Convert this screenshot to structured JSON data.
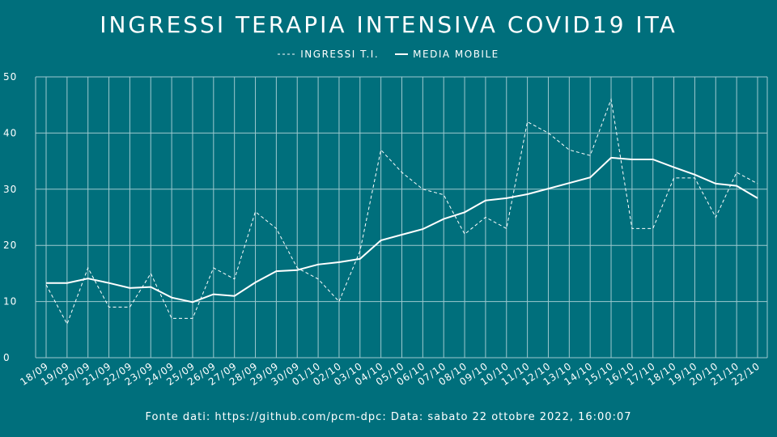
{
  "title": "INGRESSI TERAPIA INTENSIVA COVID19 ITA",
  "legend": {
    "series1": "INGRESSI T.I.",
    "series2": "MEDIA MOBILE"
  },
  "source_text": "Fonte dati: https://github.com/pcm-dpc: Data: sabato 22 ottobre 2022, 16:00:07",
  "colors": {
    "background": "#006f7c",
    "grid": "#9ec9cf",
    "line": "#ffffff"
  },
  "chart_data": {
    "type": "line",
    "categories": [
      "18/09",
      "19/09",
      "20/09",
      "21/09",
      "22/09",
      "23/09",
      "24/09",
      "25/09",
      "26/09",
      "27/09",
      "28/09",
      "29/09",
      "30/09",
      "01/10",
      "02/10",
      "03/10",
      "04/10",
      "05/10",
      "06/10",
      "07/10",
      "08/10",
      "09/10",
      "10/10",
      "11/10",
      "12/10",
      "13/10",
      "14/10",
      "15/10",
      "16/10",
      "17/10",
      "18/10",
      "19/10",
      "20/10",
      "21/10",
      "22/10"
    ],
    "series": [
      {
        "name": "INGRESSI T.I.",
        "style": "dashed",
        "values": [
          13,
          6,
          16,
          9,
          9,
          15,
          7,
          7,
          16,
          14,
          26,
          23,
          16,
          14,
          10,
          19,
          37,
          33,
          30,
          29,
          22,
          25,
          23,
          42,
          40,
          37,
          36,
          46,
          23,
          23,
          32,
          32,
          25,
          33,
          31
        ]
      },
      {
        "name": "MEDIA MOBILE",
        "style": "solid",
        "values": [
          13.3,
          13.3,
          14.1,
          13.3,
          12.4,
          12.6,
          10.7,
          9.9,
          11.3,
          11.0,
          13.4,
          15.4,
          15.6,
          16.6,
          17.0,
          17.6,
          20.9,
          21.9,
          22.9,
          24.7,
          25.9,
          28.0,
          28.4,
          29.1,
          30.1,
          31.1,
          32.1,
          35.6,
          35.3,
          35.3,
          33.9,
          32.6,
          31.0,
          30.6,
          28.4
        ]
      }
    ],
    "yticks": [
      "0",
      "10",
      "20",
      "30",
      "40",
      "50"
    ],
    "ylim": [
      0,
      50
    ],
    "grid": true,
    "legend_position": "top-center"
  }
}
